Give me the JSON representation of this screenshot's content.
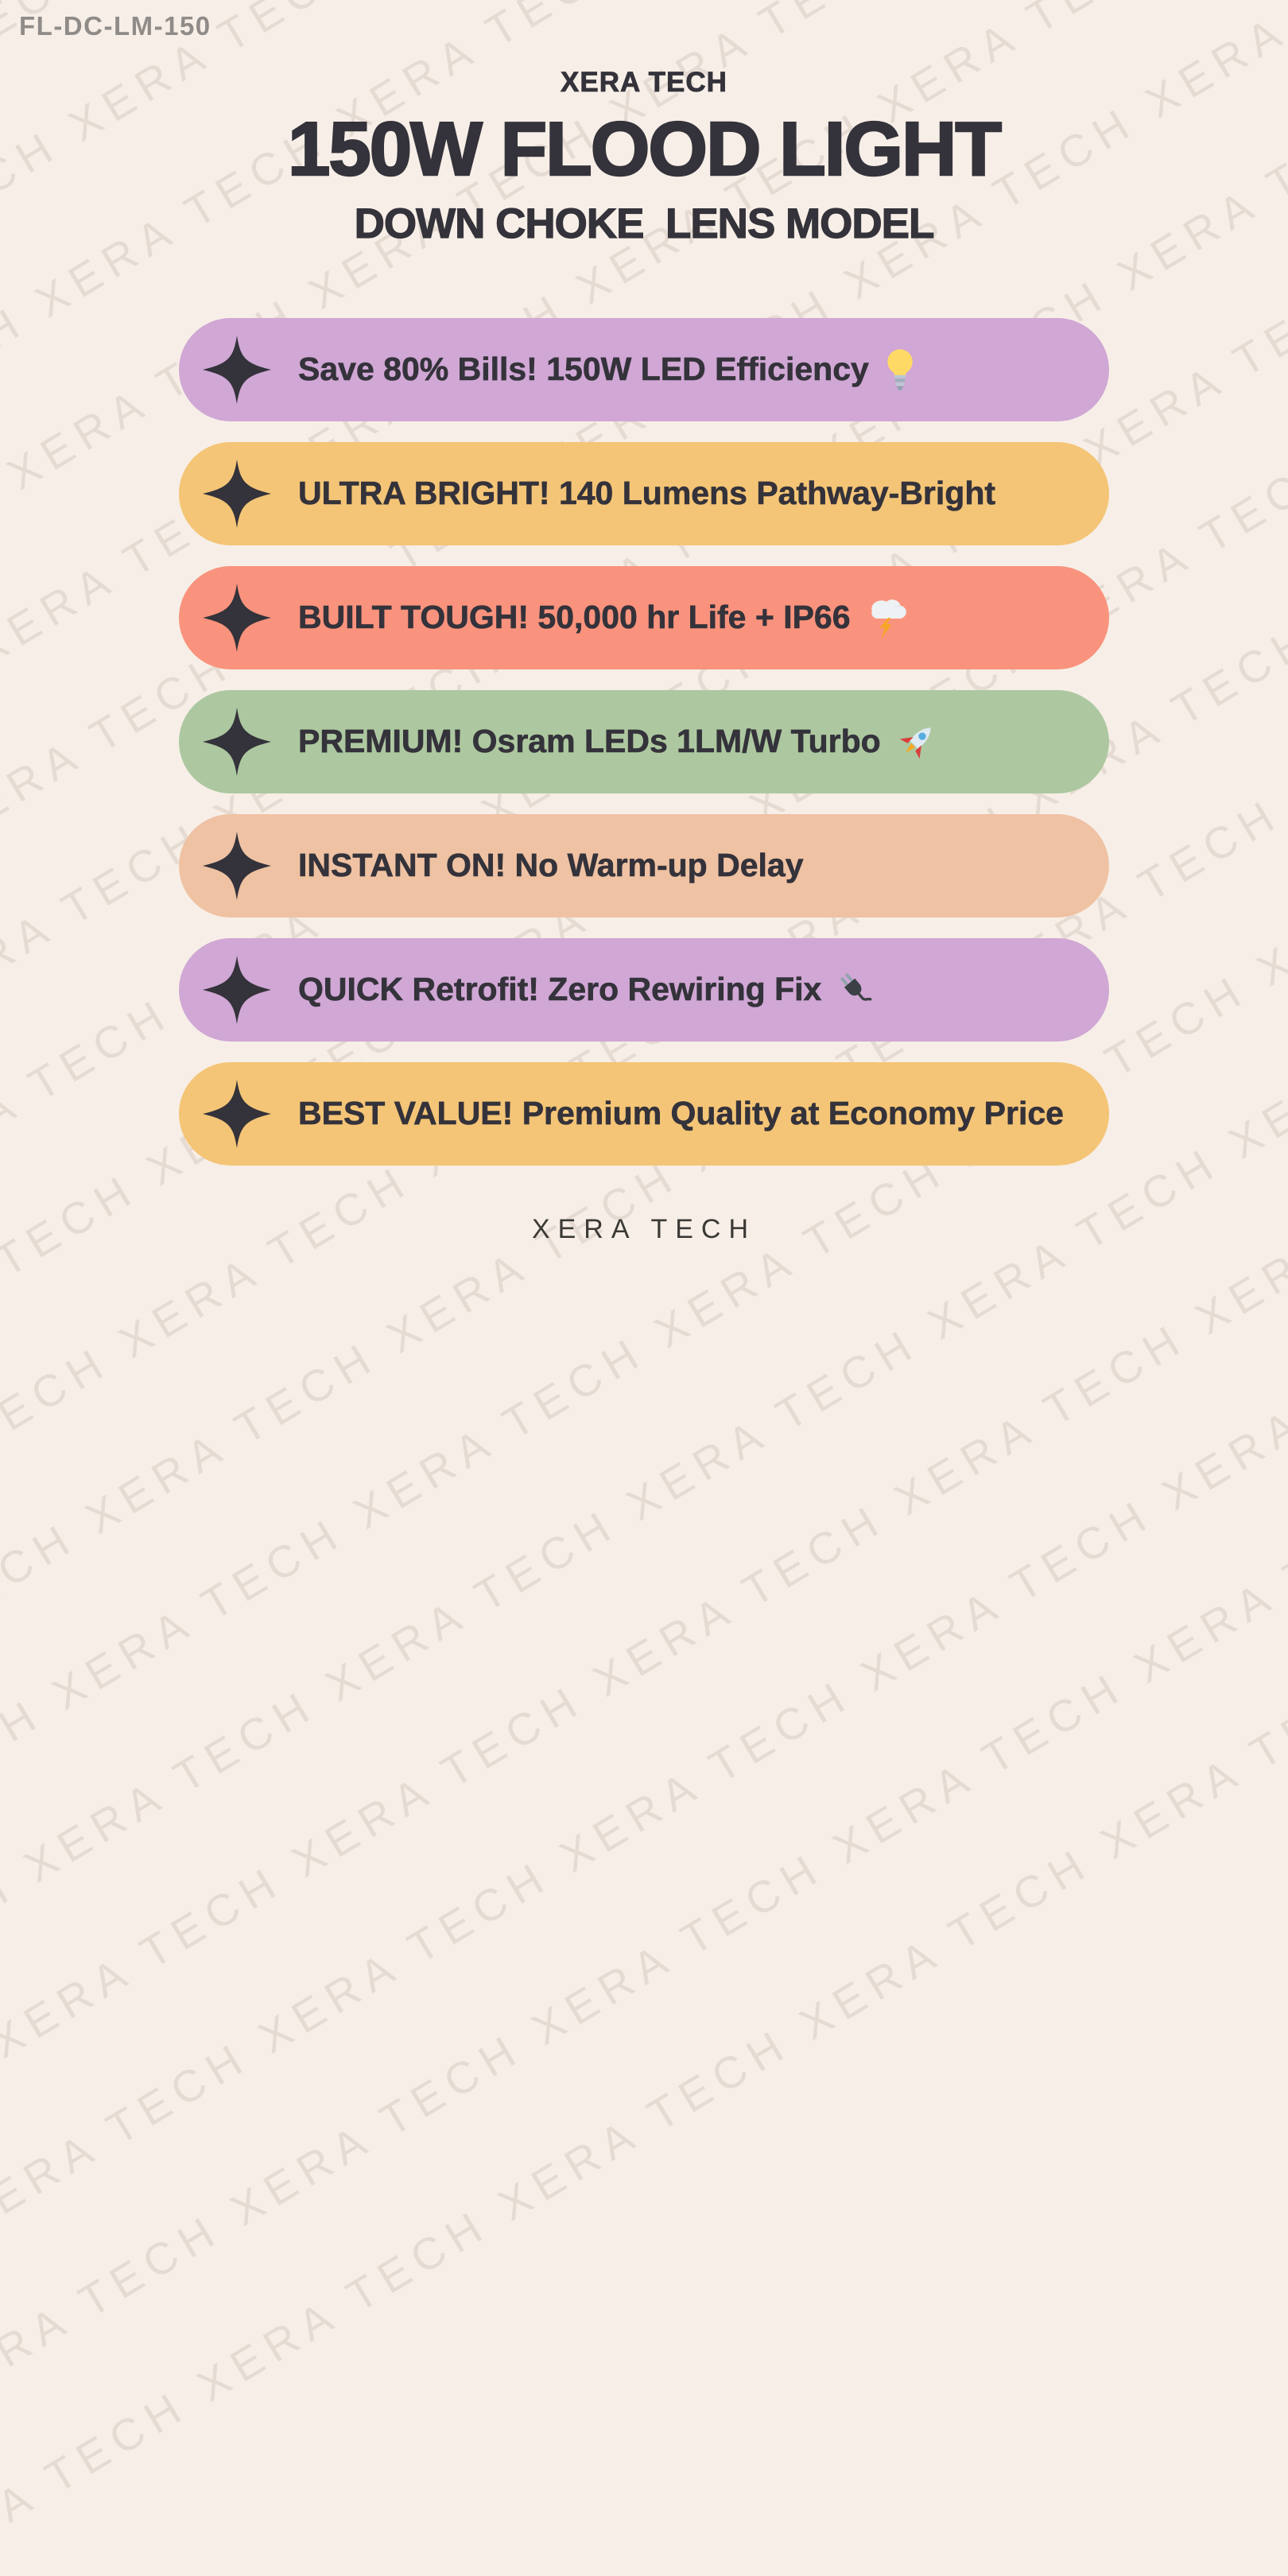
{
  "page": {
    "background": "#f7efe7",
    "watermark_text": "XERA TECH",
    "model_code": "FL-DC-LM-150"
  },
  "header": {
    "brand": "XERA TECH",
    "title": "150W FLOOD LIGHT",
    "subtitle": "DOWN CHOKE  LENS MODEL"
  },
  "features": [
    {
      "label": "Save 80% Bills! 150W LED Efficiency",
      "emoji": "💡",
      "icon": "bulb",
      "bg": "#d0a7d5"
    },
    {
      "label": "ULTRA BRIGHT! 140 Lumens Pathway-Bright",
      "emoji": "",
      "icon": "",
      "bg": "#f4c577"
    },
    {
      "label": "BUILT TOUGH! 50,000 hr Life + IP66",
      "emoji": "🌩️",
      "icon": "storm",
      "bg": "#f9937d"
    },
    {
      "label": "PREMIUM! Osram LEDs 1LM/W Turbo",
      "emoji": "🚀",
      "icon": "rocket",
      "bg": "#adc8a0"
    },
    {
      "label": "INSTANT ON! No Warm-up Delay",
      "emoji": "",
      "icon": "",
      "bg": "#efc2a3"
    },
    {
      "label": "QUICK Retrofit! Zero Rewiring Fix",
      "emoji": "🔌",
      "icon": "plug",
      "bg": "#d0a7d5"
    },
    {
      "label": "BEST VALUE! Premium Quality at Economy Price",
      "emoji": "",
      "icon": "",
      "bg": "#f4c577"
    }
  ],
  "footer": {
    "brand": "XERA TECH"
  },
  "colors": {
    "text_dark": "#34323a",
    "model_code_gray": "#8f8b88",
    "purple": "#d0a7d5",
    "yellow": "#f4c577",
    "coral": "#f9937d",
    "green": "#adc8a0",
    "peach": "#efc2a3",
    "background": "#f7efe7"
  }
}
